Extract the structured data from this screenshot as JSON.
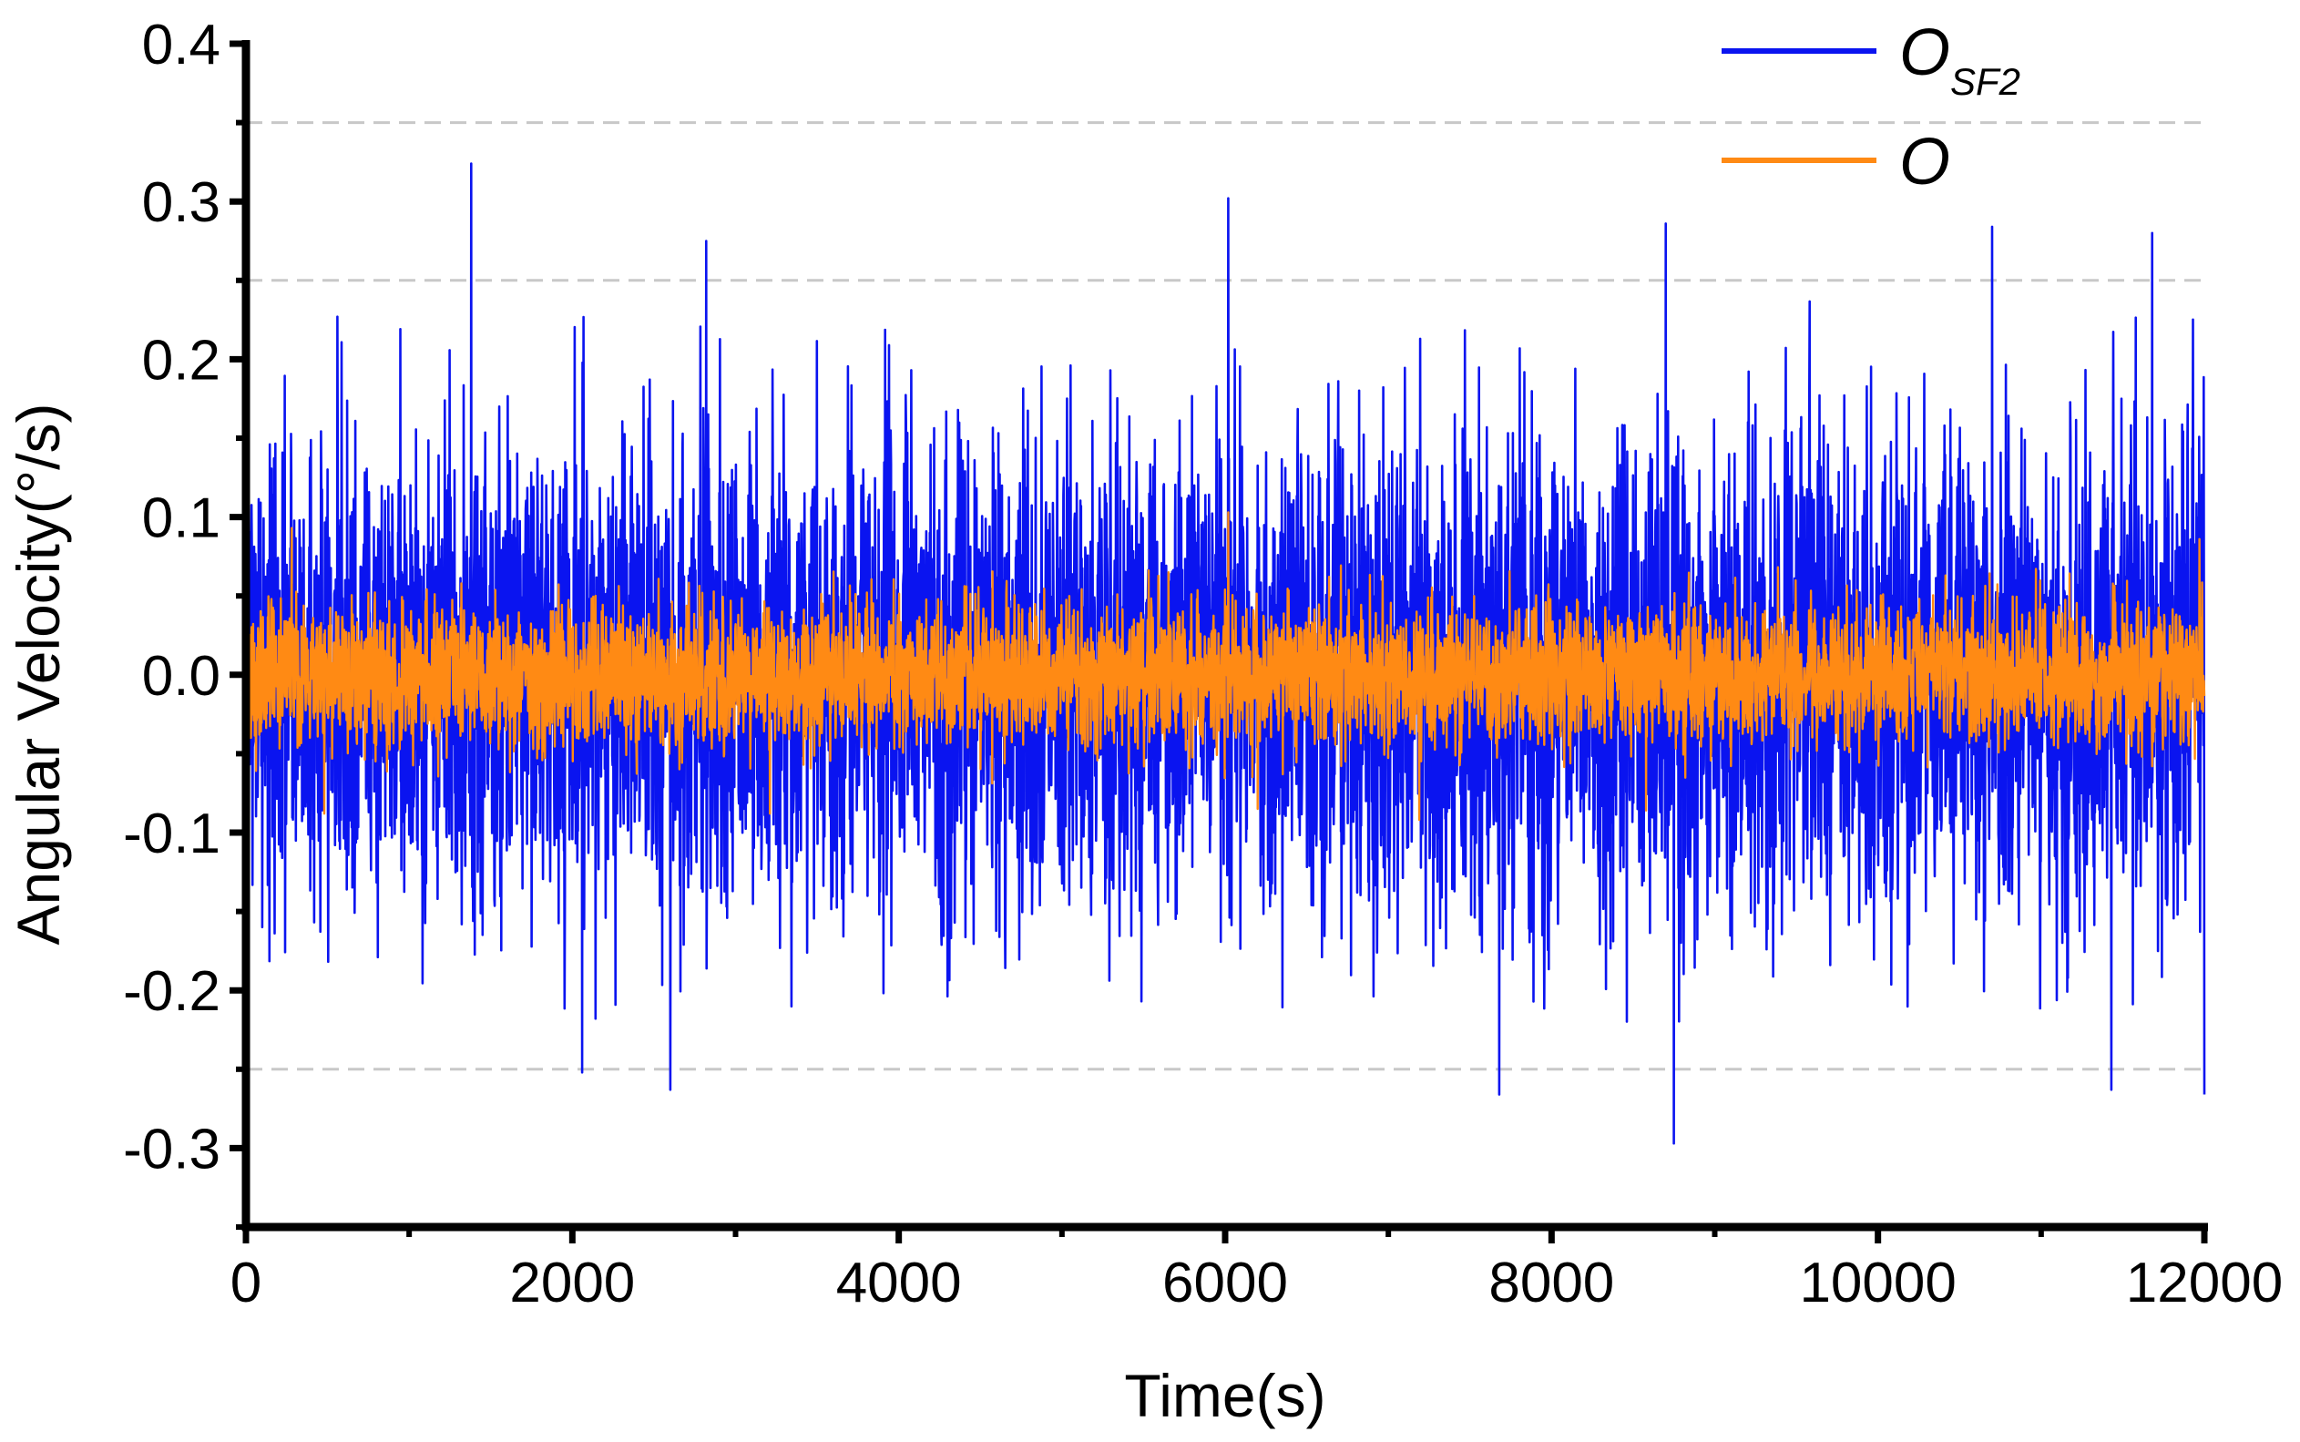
{
  "chart_data": {
    "type": "line",
    "title": "",
    "xlabel": "Time(s)",
    "ylabel": "Angular Velocity(°/s)",
    "xlim": [
      0,
      12000
    ],
    "ylim": [
      -0.35,
      0.4
    ],
    "x_ticks": [
      0,
      2000,
      4000,
      6000,
      8000,
      10000,
      12000
    ],
    "x_tick_labels": [
      "0",
      "2000",
      "4000",
      "6000",
      "8000",
      "10000",
      "12000"
    ],
    "y_ticks": [
      -0.3,
      -0.2,
      -0.1,
      0.0,
      0.1,
      0.2,
      0.3,
      0.4
    ],
    "y_tick_labels": [
      "-0.3",
      "-0.2",
      "-0.1",
      "0.0",
      "0.1",
      "0.2",
      "0.3",
      "0.4"
    ],
    "reference_lines_y": [
      -0.25,
      0.25,
      0.35
    ],
    "legend_position": "top-right",
    "series": [
      {
        "name": "O",
        "name_subscript": "SF2",
        "color": "#0a14f0",
        "description": "dense noise around 0, mostly within ±0.2",
        "x_range": [
          0,
          12000
        ],
        "envelope_upper_typical": 0.2,
        "envelope_lower_typical": -0.18,
        "peaks": [
          {
            "x": 1380,
            "y": 0.324
          },
          {
            "x": 8750,
            "y": 0.316
          },
          {
            "x": 6020,
            "y": 0.302
          },
          {
            "x": 10700,
            "y": 0.284
          },
          {
            "x": 8700,
            "y": 0.286
          },
          {
            "x": 2820,
            "y": 0.275
          },
          {
            "x": 11680,
            "y": 0.28
          },
          {
            "x": 8750,
            "y": -0.297
          },
          {
            "x": 7680,
            "y": -0.266
          },
          {
            "x": 11430,
            "y": -0.263
          },
          {
            "x": 2600,
            "y": -0.263
          },
          {
            "x": 12000,
            "y": -0.266
          },
          {
            "x": 2060,
            "y": -0.252
          }
        ]
      },
      {
        "name": "O",
        "name_subscript": "",
        "color": "#ff8a14",
        "description": "smaller noise around 0, mostly within ±0.06",
        "x_range": [
          0,
          12000
        ],
        "envelope_upper_typical": 0.055,
        "envelope_lower_typical": -0.055,
        "peaks": [
          {
            "x": 6020,
            "y": 0.103
          },
          {
            "x": 280,
            "y": 0.093
          },
          {
            "x": 11970,
            "y": 0.086
          },
          {
            "x": 7190,
            "y": -0.092
          },
          {
            "x": 480,
            "y": -0.088
          },
          {
            "x": 3210,
            "y": -0.088
          },
          {
            "x": 8580,
            "y": -0.086
          },
          {
            "x": 6200,
            "y": -0.085
          }
        ]
      }
    ]
  },
  "legend": {
    "items": [
      {
        "label": "O",
        "subscript": "SF2"
      },
      {
        "label": "O",
        "subscript": ""
      }
    ]
  }
}
